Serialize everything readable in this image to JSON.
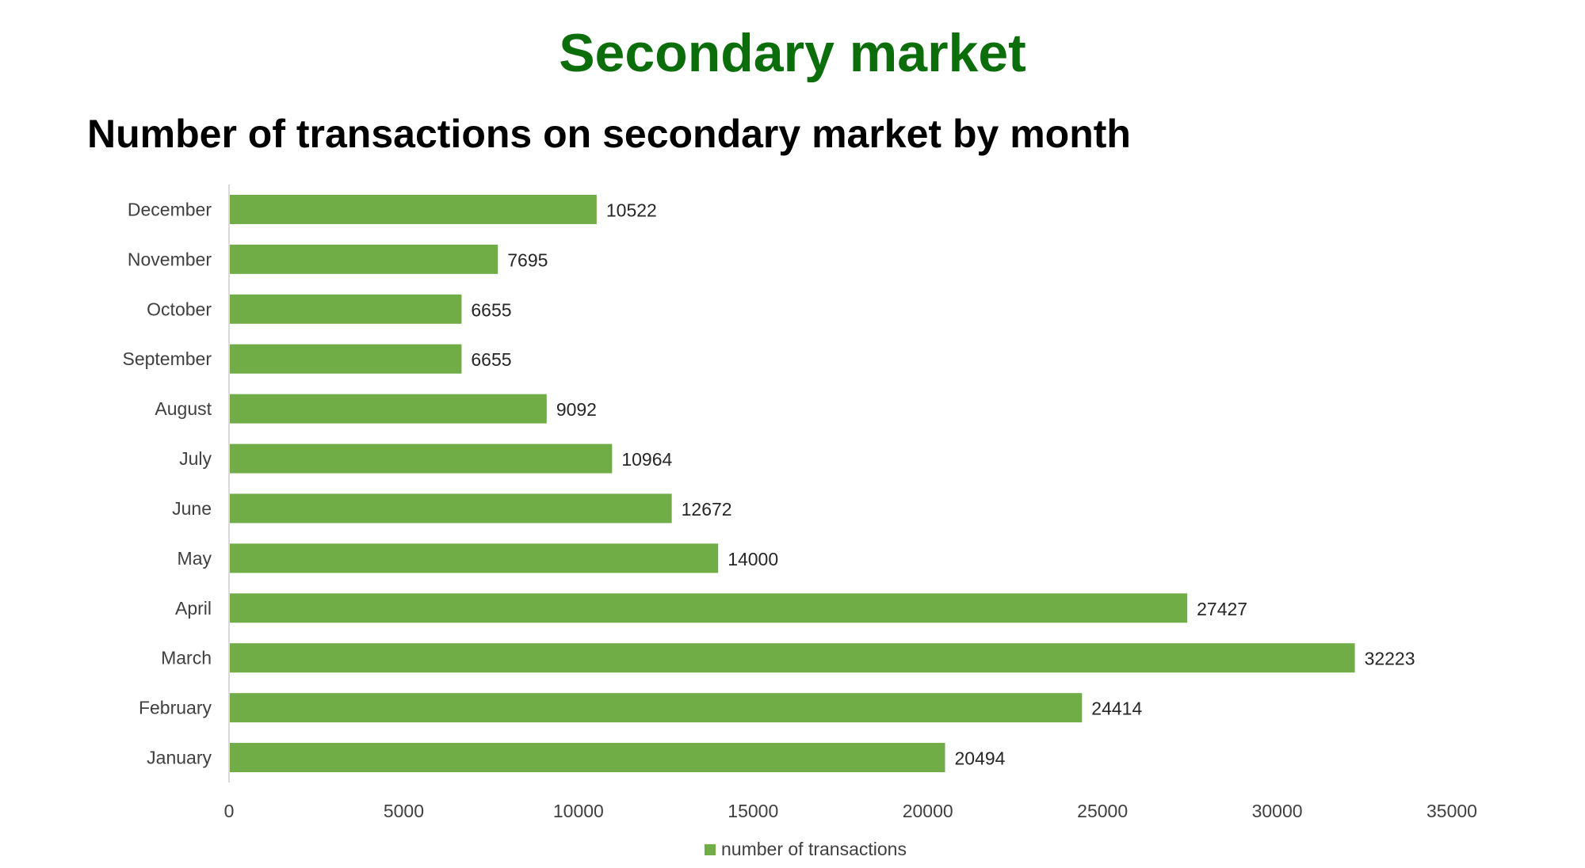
{
  "slide": {
    "title": "Secondary market"
  },
  "chart_data": {
    "type": "bar",
    "orientation": "horizontal",
    "title": "Number of transactions on secondary market by month",
    "categories": [
      "January",
      "February",
      "March",
      "April",
      "May",
      "June",
      "July",
      "August",
      "September",
      "October",
      "November",
      "December"
    ],
    "series": [
      {
        "name": "number of transactions",
        "values": [
          20494,
          24414,
          32223,
          27427,
          14000,
          12672,
          10964,
          9092,
          6655,
          6655,
          7695,
          10522
        ],
        "color": "#70ad47"
      }
    ],
    "xlim": [
      0,
      35000
    ],
    "x_ticks": [
      "0",
      "5000",
      "10000",
      "15000",
      "20000",
      "25000",
      "30000",
      "35000"
    ],
    "data_labels": true,
    "grid": false,
    "legend": "bottom"
  }
}
